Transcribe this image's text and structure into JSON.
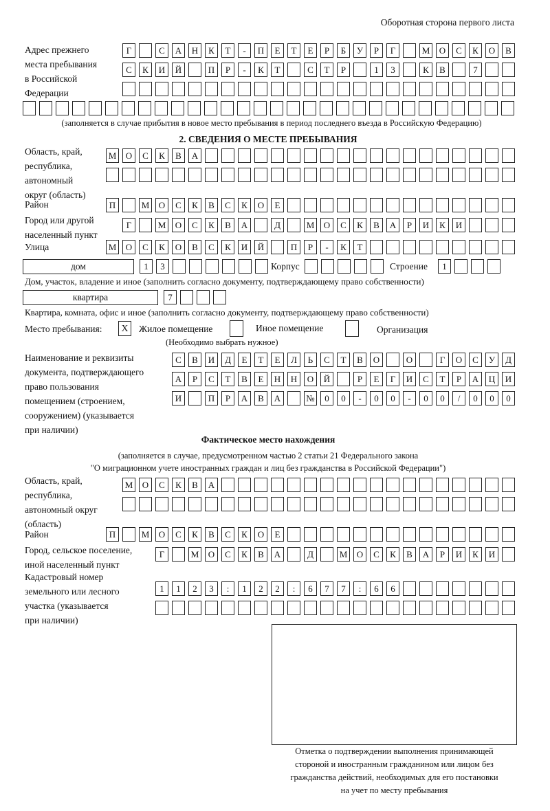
{
  "page_header": "Оборотная сторона первого листа",
  "prev_address": {
    "label": "Адрес прежнего\nместа пребывания\nв Российской\nФедерации",
    "rows": [
      [
        "Г",
        "",
        "С",
        "А",
        "Н",
        "К",
        "Т",
        "-",
        "П",
        "Е",
        "Т",
        "Е",
        "Р",
        "Б",
        "У",
        "Р",
        "Г",
        "",
        "М",
        "О",
        "С",
        "К",
        "О",
        "В"
      ],
      [
        "С",
        "К",
        "И",
        "Й",
        "",
        "П",
        "Р",
        "-",
        "К",
        "Т",
        "",
        "С",
        "Т",
        "Р",
        "",
        "1",
        "3",
        "",
        "К",
        "В",
        "",
        "7",
        "",
        ""
      ],
      [
        "",
        "",
        "",
        "",
        "",
        "",
        "",
        "",
        "",
        "",
        "",
        "",
        "",
        "",
        "",
        "",
        "",
        "",
        "",
        "",
        "",
        "",
        "",
        ""
      ],
      [
        "",
        "",
        "",
        "",
        "",
        "",
        "",
        "",
        "",
        "",
        "",
        "",
        "",
        "",
        "",
        "",
        "",
        "",
        "",
        "",
        "",
        "",
        "",
        "",
        "",
        "",
        "",
        "",
        "",
        ""
      ]
    ],
    "note": "(заполняется в случае прибытия в новое место пребывания в период последнего въезда в Российскую Федерацию)"
  },
  "section2": {
    "title": "2. СВЕДЕНИЯ О МЕСТЕ ПРЕБЫВАНИЯ",
    "region": {
      "label": "Область, край,\nреспублика,\nавтономный\nокруг (область)",
      "rows": [
        [
          "М",
          "О",
          "С",
          "К",
          "В",
          "А",
          "",
          "",
          "",
          "",
          "",
          "",
          "",
          "",
          "",
          "",
          "",
          "",
          "",
          "",
          "",
          "",
          "",
          "",
          ""
        ],
        [
          "",
          "",
          "",
          "",
          "",
          "",
          "",
          "",
          "",
          "",
          "",
          "",
          "",
          "",
          "",
          "",
          "",
          "",
          "",
          "",
          "",
          "",
          "",
          "",
          ""
        ]
      ]
    },
    "district": {
      "label": "Район",
      "row": [
        "П",
        "",
        "М",
        "О",
        "С",
        "К",
        "В",
        "С",
        "К",
        "О",
        "Е",
        "",
        "",
        "",
        "",
        "",
        "",
        "",
        "",
        "",
        "",
        "",
        "",
        "",
        ""
      ]
    },
    "city": {
      "label": "Город или другой\nнаселенный пункт",
      "row": [
        "Г",
        "",
        "М",
        "О",
        "С",
        "К",
        "В",
        "А",
        "",
        "Д",
        "",
        "М",
        "О",
        "С",
        "К",
        "В",
        "А",
        "Р",
        "И",
        "К",
        "И",
        "",
        "",
        ""
      ]
    },
    "street": {
      "label": "Улица",
      "row": [
        "М",
        "О",
        "С",
        "К",
        "О",
        "В",
        "С",
        "К",
        "И",
        "Й",
        "",
        "П",
        "Р",
        "-",
        "К",
        "Т",
        "",
        "",
        "",
        "",
        "",
        "",
        "",
        "",
        ""
      ]
    },
    "house": {
      "type": "дом",
      "number": [
        "1",
        "3",
        "",
        "",
        "",
        "",
        "",
        ""
      ],
      "korpus_label": "Корпус",
      "korpus": [
        "",
        "",
        "",
        "",
        ""
      ],
      "stroenie_label": "Строение",
      "stroenie": [
        "1",
        "",
        "",
        ""
      ],
      "note": "Дом, участок, владение и иное (заполнить согласно документу, подтверждающему право собственности)"
    },
    "flat": {
      "type": "квартира",
      "number": [
        "7",
        "",
        "",
        ""
      ],
      "note": "Квартира, комната, офис и иное (заполнить согласно документу, подтверждающему право собственности)"
    },
    "place": {
      "label": "Место пребывания:",
      "options": [
        {
          "label": "Жилое помещение",
          "mark": "X"
        },
        {
          "label": "Иное помещение",
          "mark": ""
        },
        {
          "label": "Организация",
          "mark": ""
        }
      ],
      "note": "(Необходимо выбрать нужное)"
    },
    "document": {
      "label": "Наименование и реквизиты\nдокумента, подтверждающего\nправо пользования\nпомещением (строением,\nсооружением) (указывается\nпри наличии)",
      "rows": [
        [
          "С",
          "В",
          "И",
          "Д",
          "Е",
          "Т",
          "Е",
          "Л",
          "Ь",
          "С",
          "Т",
          "В",
          "О",
          "",
          "О",
          "",
          "Г",
          "О",
          "С",
          "У",
          "Д"
        ],
        [
          "А",
          "Р",
          "С",
          "Т",
          "В",
          "Е",
          "Н",
          "Н",
          "О",
          "Й",
          "",
          "Р",
          "Е",
          "Г",
          "И",
          "С",
          "Т",
          "Р",
          "А",
          "Ц",
          "И"
        ],
        [
          "И",
          "",
          "П",
          "Р",
          "А",
          "В",
          "А",
          "",
          "№",
          "0",
          "0",
          "-",
          "0",
          "0",
          "-",
          "0",
          "0",
          "/",
          "0",
          "0",
          "0"
        ]
      ]
    }
  },
  "actual": {
    "title": "Фактическое место нахождения",
    "note1": "(заполняется в случае, предусмотренном частью 2 статьи 21 Федерального закона",
    "note2": "\"О миграционном учете иностранных граждан и лиц без гражданства в Российской Федерации\")",
    "region": {
      "label": "Область, край,\nреспублика,\nавтономный округ\n(область)",
      "rows": [
        [
          "М",
          "О",
          "С",
          "К",
          "В",
          "А",
          "",
          "",
          "",
          "",
          "",
          "",
          "",
          "",
          "",
          "",
          "",
          "",
          "",
          "",
          "",
          "",
          "",
          ""
        ],
        [
          "",
          "",
          "",
          "",
          "",
          "",
          "",
          "",
          "",
          "",
          "",
          "",
          "",
          "",
          "",
          "",
          "",
          "",
          "",
          "",
          "",
          "",
          "",
          ""
        ]
      ]
    },
    "district": {
      "label": "Район",
      "row": [
        "П",
        "",
        "М",
        "О",
        "С",
        "К",
        "В",
        "С",
        "К",
        "О",
        "Е",
        "",
        "",
        "",
        "",
        "",
        "",
        "",
        "",
        "",
        "",
        "",
        "",
        "",
        ""
      ]
    },
    "city": {
      "label": "Город, сельское поселение,\nиной населенный пункт",
      "row": [
        "Г",
        "",
        "М",
        "О",
        "С",
        "К",
        "В",
        "А",
        "",
        "Д",
        "",
        "М",
        "О",
        "С",
        "К",
        "В",
        "А",
        "Р",
        "И",
        "К",
        "И",
        ""
      ]
    },
    "cadastral": {
      "label": "Кадастровый номер\nземельного или лесного\nучастка (указывается\nпри наличии)",
      "rows": [
        [
          "1",
          "1",
          "2",
          "3",
          ":",
          "1",
          "2",
          "2",
          ":",
          "6",
          "7",
          "7",
          ":",
          "6",
          "6",
          "",
          "",
          "",
          "",
          "",
          "",
          ""
        ],
        [
          "",
          "",
          "",
          "",
          "",
          "",
          "",
          "",
          "",
          "",
          "",
          "",
          "",
          "",
          "",
          "",
          "",
          "",
          "",
          "",
          "",
          ""
        ]
      ]
    }
  },
  "stamp_caption": "Отметка о подтверждении выполнения принимающей\nстороной и иностранным гражданином или лицом без\nгражданства действий, необходимых для его постановки\nна учет по месту пребывания"
}
